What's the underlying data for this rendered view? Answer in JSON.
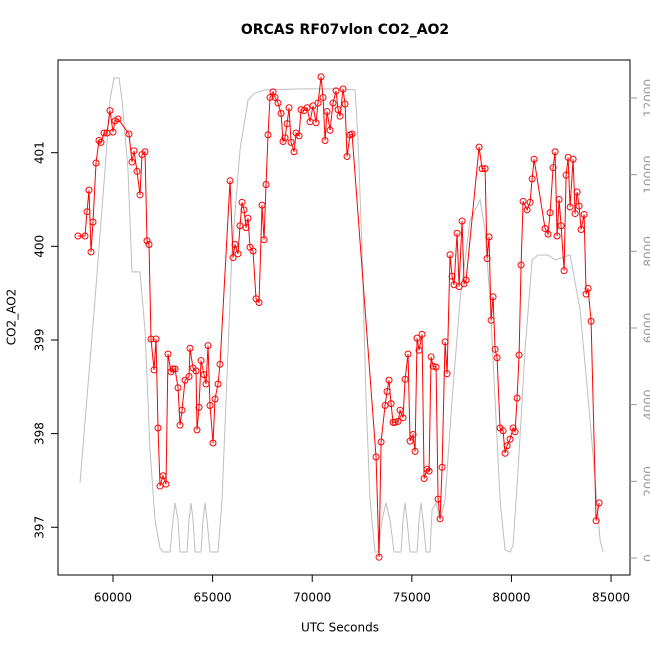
{
  "chart_data": {
    "type": "line",
    "title": "ORCAS RF07vlon CO2_AO2",
    "x_label": "UTC Seconds",
    "y_label": "CO2_AO2",
    "xlim": [
      57240,
      85950
    ],
    "xticks": [
      60000,
      65000,
      70000,
      75000,
      80000,
      85000
    ],
    "ylim": [
      396.49,
      401.99
    ],
    "yticks": [
      397,
      398,
      399,
      400,
      401
    ],
    "y2lim": [
      -443,
      12990
    ],
    "y2ticks": [
      0,
      2000,
      4000,
      6000,
      8000,
      10000,
      12000
    ],
    "series": [
      {
        "color": "#ff0000",
        "marker": "circle",
        "x": [
          58244,
          58595,
          58696,
          58796,
          58897,
          58997,
          59148,
          59298,
          59399,
          59549,
          59700,
          59850,
          60001,
          60101,
          60252,
          60804,
          60954,
          61055,
          61206,
          61356,
          61457,
          61607,
          61708,
          61808,
          61909,
          62059,
          62160,
          62260,
          62361,
          62511,
          62662,
          62762,
          62913,
          63013,
          63114,
          63264,
          63365,
          63465,
          63616,
          63816,
          63866,
          64017,
          64168,
          64218,
          64318,
          64419,
          64569,
          64670,
          64770,
          64870,
          65021,
          65122,
          65272,
          65372,
          65874,
          66025,
          66125,
          66276,
          66376,
          66477,
          66577,
          66677,
          66778,
          66878,
          67029,
          67180,
          67330,
          67481,
          67581,
          67682,
          67782,
          67882,
          68033,
          68133,
          68284,
          68435,
          68535,
          68636,
          68736,
          68836,
          68937,
          69087,
          69188,
          69338,
          69439,
          69589,
          69740,
          69891,
          70041,
          70192,
          70292,
          70443,
          70543,
          70644,
          70744,
          70895,
          71045,
          71196,
          71296,
          71397,
          71547,
          71648,
          71748,
          71899,
          71999,
          73204,
          73354,
          73455,
          73656,
          73756,
          73856,
          73957,
          74057,
          74158,
          74308,
          74409,
          74559,
          74660,
          74810,
          74911,
          75062,
          75162,
          75262,
          75363,
          75513,
          75614,
          75764,
          75865,
          75965,
          76066,
          76216,
          76317,
          76417,
          76518,
          76668,
          76769,
          76918,
          77019,
          77119,
          77270,
          77371,
          77521,
          77622,
          77722,
          78374,
          78525,
          78676,
          78776,
          78876,
          78977,
          79077,
          79178,
          79278,
          79428,
          79579,
          79680,
          79780,
          79931,
          80082,
          80182,
          80282,
          80383,
          80483,
          80584,
          80785,
          80935,
          81036,
          81136,
          81688,
          81839,
          81939,
          82090,
          82190,
          82291,
          82391,
          82491,
          82642,
          82742,
          82843,
          82943,
          83094,
          83194,
          83295,
          83395,
          83496,
          83646,
          83747,
          83847,
          83997,
          84248,
          84399
        ],
        "values": [
          400.11,
          400.11,
          400.37,
          400.6,
          399.94,
          400.26,
          400.89,
          401.13,
          401.11,
          401.21,
          401.21,
          401.45,
          401.22,
          401.34,
          401.36,
          401.2,
          400.9,
          401.02,
          400.8,
          400.55,
          400.98,
          401.01,
          400.06,
          400.02,
          399.01,
          398.68,
          399.01,
          398.06,
          397.44,
          397.55,
          397.46,
          398.85,
          398.66,
          398.69,
          398.69,
          398.49,
          398.09,
          398.25,
          398.57,
          398.61,
          398.91,
          398.7,
          398.67,
          398.04,
          398.28,
          398.78,
          398.63,
          398.53,
          398.94,
          398.3,
          397.9,
          398.37,
          398.53,
          398.74,
          400.7,
          399.88,
          400.02,
          399.92,
          400.22,
          400.47,
          400.39,
          400.2,
          400.3,
          399.99,
          399.95,
          399.44,
          399.4,
          400.44,
          400.07,
          400.66,
          401.19,
          401.59,
          401.65,
          401.59,
          401.53,
          401.42,
          401.12,
          401.16,
          401.31,
          401.48,
          401.11,
          401.01,
          401.21,
          401.18,
          401.46,
          401.45,
          401.48,
          401.33,
          401.5,
          401.32,
          401.53,
          401.81,
          401.59,
          401.13,
          401.44,
          401.24,
          401.53,
          401.66,
          401.46,
          401.39,
          401.68,
          401.52,
          400.96,
          401.19,
          401.2,
          397.75,
          396.68,
          397.91,
          398.3,
          398.45,
          398.57,
          398.32,
          398.12,
          398.12,
          398.13,
          398.25,
          398.17,
          398.58,
          398.85,
          397.92,
          397.99,
          397.81,
          399.02,
          398.89,
          399.06,
          397.52,
          397.62,
          397.6,
          398.82,
          398.72,
          398.71,
          397.3,
          397.09,
          397.64,
          398.98,
          398.64,
          399.91,
          399.68,
          399.59,
          400.14,
          399.57,
          400.27,
          399.6,
          399.64,
          401.06,
          400.83,
          400.83,
          399.87,
          400.1,
          399.21,
          399.46,
          398.9,
          398.81,
          398.06,
          398.03,
          397.79,
          397.87,
          397.94,
          398.06,
          398.02,
          398.38,
          398.84,
          399.8,
          400.48,
          400.39,
          400.47,
          400.72,
          400.93,
          400.19,
          400.13,
          400.36,
          400.84,
          401.01,
          400.11,
          400.5,
          400.22,
          399.74,
          400.76,
          400.95,
          400.42,
          400.93,
          400.35,
          400.58,
          400.43,
          400.18,
          400.34,
          399.49,
          399.55,
          399.2,
          397.07,
          397.26
        ]
      },
      {
        "color": "#bebebe",
        "axis": "y2",
        "x": [
          58344,
          59097,
          59599,
          59850,
          60051,
          60302,
          60453,
          60754,
          60955,
          61356,
          61607,
          61858,
          62109,
          62360,
          62511,
          62862,
          63013,
          63113,
          63264,
          63364,
          63716,
          63816,
          63917,
          64017,
          64117,
          64419,
          64519,
          64619,
          64720,
          64870,
          65272,
          65473,
          65674,
          65975,
          66376,
          66778,
          67129,
          67631,
          69388,
          71396,
          72149,
          72300,
          72501,
          72702,
          72902,
          73153,
          73304,
          73505,
          73706,
          73906,
          74107,
          74459,
          74559,
          74659,
          74760,
          74910,
          75262,
          75362,
          75463,
          75563,
          75714,
          75914,
          76015,
          76216,
          76416,
          76667,
          77019,
          77420,
          77922,
          78424,
          78675,
          78926,
          79177,
          79428,
          79679,
          79930,
          80081,
          80332,
          80683,
          81035,
          81336,
          81838,
          82189,
          82942,
          83444,
          83946,
          84448,
          84599
        ],
        "values": [
          1957,
          6731,
          10123,
          11949,
          12523,
          12523,
          11949,
          10123,
          7462,
          7462,
          5948,
          2818,
          991,
          261,
          157,
          157,
          991,
          1435,
          991,
          157,
          157,
          991,
          1435,
          991,
          157,
          157,
          991,
          1435,
          991,
          157,
          157,
          1513,
          4122,
          8035,
          10644,
          11949,
          12132,
          12210,
          12236,
          12236,
          12210,
          10905,
          8035,
          4122,
          1513,
          157,
          157,
          991,
          1435,
          991,
          157,
          157,
          991,
          1435,
          991,
          157,
          157,
          991,
          1435,
          991,
          157,
          157,
          1252,
          1435,
          991,
          1513,
          4122,
          6731,
          8818,
          9340,
          8557,
          6731,
          4122,
          1513,
          209,
          157,
          339,
          2296,
          5427,
          7775,
          7905,
          7905,
          7775,
          7905,
          6470,
          3600,
          470,
          157
        ]
      }
    ]
  }
}
